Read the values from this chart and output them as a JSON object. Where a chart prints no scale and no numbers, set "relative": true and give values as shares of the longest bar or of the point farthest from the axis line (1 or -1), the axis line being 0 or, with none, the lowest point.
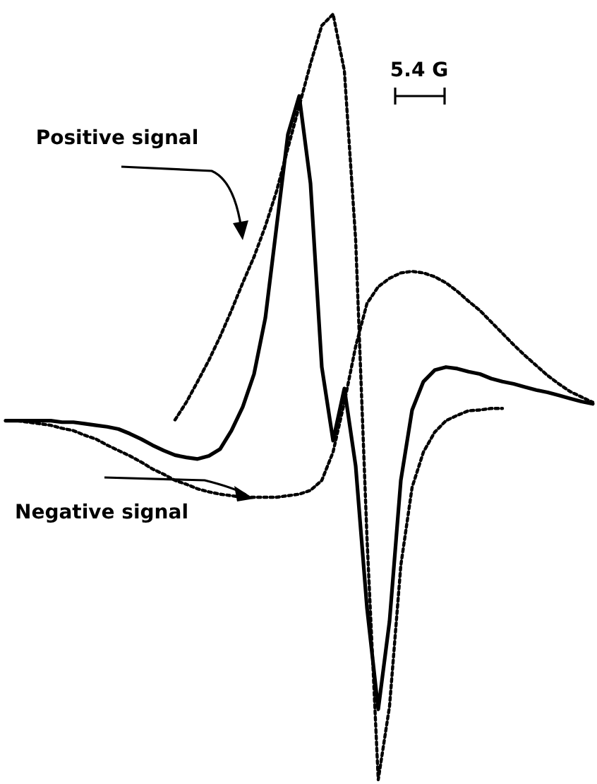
{
  "chart_data": {
    "type": "line",
    "relative": true,
    "marker": "none",
    "categories": [
      null,
      null,
      null,
      null,
      null,
      null,
      null,
      null,
      null,
      null,
      null,
      null,
      null,
      null,
      null,
      null,
      null,
      null,
      null,
      null,
      null,
      null,
      null,
      null,
      null,
      null,
      null,
      null,
      null,
      null,
      null,
      null,
      null,
      null,
      null,
      null,
      null,
      null,
      null,
      null,
      null,
      null,
      null,
      null,
      null,
      null,
      null,
      null,
      null,
      null,
      null,
      null,
      null
    ],
    "series": [
      {
        "color": "#000000",
        "line_style": "solid",
        "values": [
          0.469,
          0.469,
          0.469,
          0.469,
          0.469,
          0.467,
          0.467,
          0.465,
          0.463,
          0.461,
          0.458,
          0.452,
          0.445,
          0.437,
          0.43,
          0.424,
          0.421,
          0.419,
          0.423,
          0.432,
          0.456,
          0.487,
          0.53,
          0.603,
          0.723,
          0.843,
          0.893,
          0.779,
          0.539,
          0.443,
          0.511,
          0.41,
          0.225,
          0.092,
          0.207,
          0.391,
          0.483,
          0.52,
          0.535,
          0.539,
          0.537,
          0.533,
          0.53,
          0.524,
          0.52,
          0.517,
          0.513,
          0.509,
          0.506,
          0.502,
          0.498,
          0.494,
          0.491
        ]
      },
      {
        "color": "#000000",
        "line_style": "dotted",
        "values": [
          null,
          null,
          null,
          null,
          null,
          null,
          null,
          null,
          null,
          null,
          null,
          null,
          null,
          null,
          null,
          0.47,
          0.493,
          0.52,
          0.548,
          0.579,
          0.613,
          0.649,
          0.683,
          0.723,
          0.769,
          0.825,
          0.88,
          0.935,
          0.985,
          1.0,
          0.926,
          0.705,
          0.317,
          0,
          0.096,
          0.28,
          0.382,
          0.428,
          0.454,
          0.469,
          0.476,
          0.482,
          0.483,
          0.485,
          0.485,
          null,
          null,
          null,
          null,
          null,
          null,
          null,
          null
        ]
      },
      {
        "color": "#000000",
        "line_style": "dotted",
        "values": [
          0.469,
          0.469,
          0.467,
          0.465,
          0.463,
          0.459,
          0.456,
          0.45,
          0.445,
          0.437,
          0.43,
          0.423,
          0.415,
          0.406,
          0.399,
          0.391,
          0.386,
          0.38,
          0.376,
          0.373,
          0.371,
          0.369,
          0.369,
          0.369,
          0.369,
          0.371,
          0.373,
          0.378,
          0.391,
          0.428,
          0.493,
          0.566,
          0.622,
          0.644,
          0.655,
          0.662,
          0.664,
          0.662,
          0.657,
          0.649,
          0.638,
          0.625,
          0.613,
          0.598,
          0.583,
          0.568,
          0.554,
          0.541,
          0.528,
          0.517,
          0.507,
          0.5,
          0.493
        ]
      }
    ],
    "annotations": [
      "Positive signal",
      "Negative signal",
      "5.4 G"
    ]
  }
}
